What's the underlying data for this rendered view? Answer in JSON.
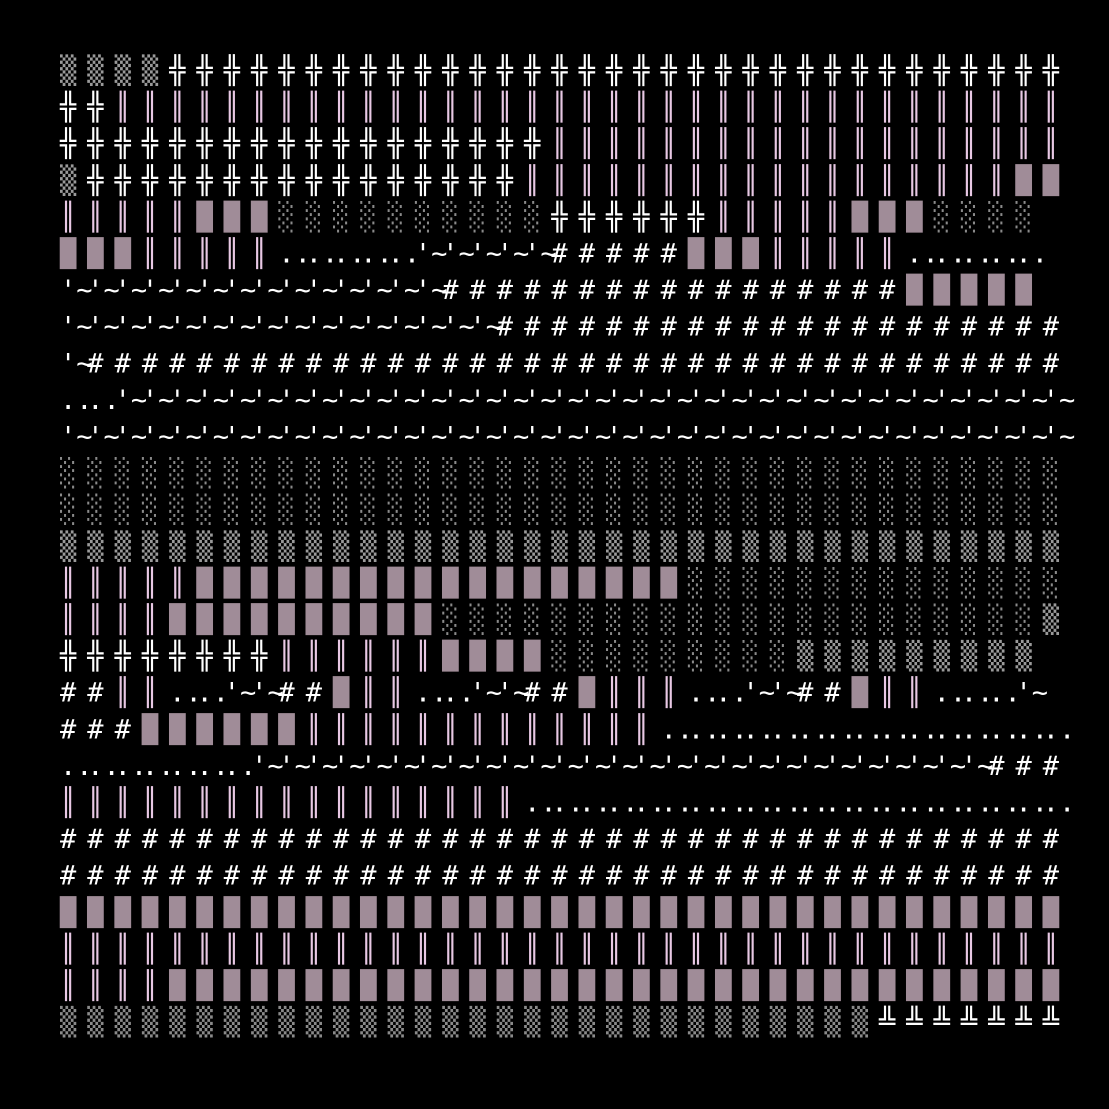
{
  "palette": {
    "background": "#000000",
    "white": "#ffffff",
    "pink": "#e8c8e4",
    "block": "#a08c98",
    "shade_light": "#8a8a8a",
    "shade_medium": "#9a9a9a"
  },
  "rows": [
    [
      [
        "▒",
        4,
        "shade_medium"
      ],
      [
        "╬",
        33,
        "white"
      ]
    ],
    [
      [
        "╬",
        2,
        "white"
      ],
      [
        "║",
        35,
        "pink"
      ]
    ],
    [
      [
        "╬",
        18,
        "white"
      ],
      [
        "║",
        19,
        "pink"
      ]
    ],
    [
      [
        "▒",
        1,
        "shade_medium"
      ],
      [
        "╬",
        16,
        "white"
      ],
      [
        "║",
        18,
        "pink"
      ],
      [
        "█",
        2,
        "block"
      ]
    ],
    [
      [
        "║",
        5,
        "pink"
      ],
      [
        "█",
        3,
        "block"
      ],
      [
        "░",
        10,
        "shade_light"
      ],
      [
        "╬",
        6,
        "white"
      ],
      [
        "║",
        5,
        "pink"
      ],
      [
        "█",
        3,
        "block"
      ],
      [
        "░",
        4,
        "shade_light"
      ]
    ],
    [
      [
        "█",
        3,
        "block"
      ],
      [
        "║",
        5,
        "pink"
      ],
      [
        "..",
        5,
        "white"
      ],
      [
        "'~",
        5,
        "white"
      ],
      [
        "#",
        5,
        "white"
      ],
      [
        "█",
        3,
        "block"
      ],
      [
        "║",
        5,
        "pink"
      ],
      [
        "..",
        5,
        "white"
      ]
    ],
    [
      [
        "'~",
        14,
        "white"
      ],
      [
        "#",
        17,
        "white"
      ],
      [
        "█",
        5,
        "block"
      ]
    ],
    [
      [
        "'~",
        16,
        "white"
      ],
      [
        "#",
        21,
        "white"
      ]
    ],
    [
      [
        "'~",
        1,
        "white"
      ],
      [
        "#",
        36,
        "white"
      ]
    ],
    [
      [
        "..",
        2,
        "white"
      ],
      [
        "'~",
        35,
        "white"
      ]
    ],
    [
      [
        "'~",
        37,
        "white"
      ]
    ],
    [
      [
        "░",
        37,
        "shade_light"
      ]
    ],
    [
      [
        "░",
        37,
        "shade_light"
      ]
    ],
    [
      [
        "▒",
        37,
        "shade_medium"
      ]
    ],
    [
      [
        "║",
        5,
        "pink"
      ],
      [
        "█",
        18,
        "block"
      ],
      [
        "░",
        14,
        "shade_light"
      ]
    ],
    [
      [
        "║",
        4,
        "pink"
      ],
      [
        "█",
        10,
        "block"
      ],
      [
        "░",
        22,
        "shade_light"
      ],
      [
        "▒",
        1,
        "shade_medium"
      ]
    ],
    [
      [
        "╬",
        8,
        "white"
      ],
      [
        "║",
        6,
        "pink"
      ],
      [
        "█",
        4,
        "block"
      ],
      [
        "░",
        9,
        "shade_light"
      ],
      [
        "▒",
        9,
        "shade_medium"
      ]
    ],
    [
      [
        "#",
        2,
        "white"
      ],
      [
        "║",
        2,
        "pink"
      ],
      [
        "..",
        2,
        "white"
      ],
      [
        "'~",
        2,
        "white"
      ],
      [
        "#",
        2,
        "white"
      ],
      [
        "█",
        1,
        "block"
      ],
      [
        "║",
        2,
        "pink"
      ],
      [
        "..",
        2,
        "white"
      ],
      [
        "'~",
        2,
        "white"
      ],
      [
        "#",
        2,
        "white"
      ],
      [
        "█",
        1,
        "block"
      ],
      [
        "║",
        3,
        "pink"
      ],
      [
        "..",
        2,
        "white"
      ],
      [
        "'~",
        2,
        "white"
      ],
      [
        "#",
        2,
        "white"
      ],
      [
        "█",
        1,
        "block"
      ],
      [
        "║",
        2,
        "pink"
      ],
      [
        "..",
        3,
        "white"
      ],
      [
        "'~",
        1,
        "white"
      ]
    ],
    [
      [
        "#",
        3,
        "white"
      ],
      [
        "█",
        6,
        "block"
      ],
      [
        "║",
        13,
        "pink"
      ],
      [
        "..",
        15,
        "white"
      ]
    ],
    [
      [
        "..",
        7,
        "white"
      ],
      [
        "'~",
        27,
        "white"
      ],
      [
        "#",
        3,
        "white"
      ]
    ],
    [
      [
        "║",
        17,
        "pink"
      ],
      [
        "..",
        20,
        "white"
      ]
    ],
    [
      [
        "#",
        37,
        "white"
      ]
    ],
    [
      [
        "#",
        37,
        "white"
      ]
    ],
    [
      [
        "█",
        37,
        "block"
      ]
    ],
    [
      [
        "║",
        37,
        "pink"
      ]
    ],
    [
      [
        "║",
        4,
        "pink"
      ],
      [
        "█",
        33,
        "block"
      ]
    ],
    [
      [
        "▒",
        30,
        "shade_light"
      ],
      [
        "╩",
        7,
        "white"
      ]
    ]
  ]
}
